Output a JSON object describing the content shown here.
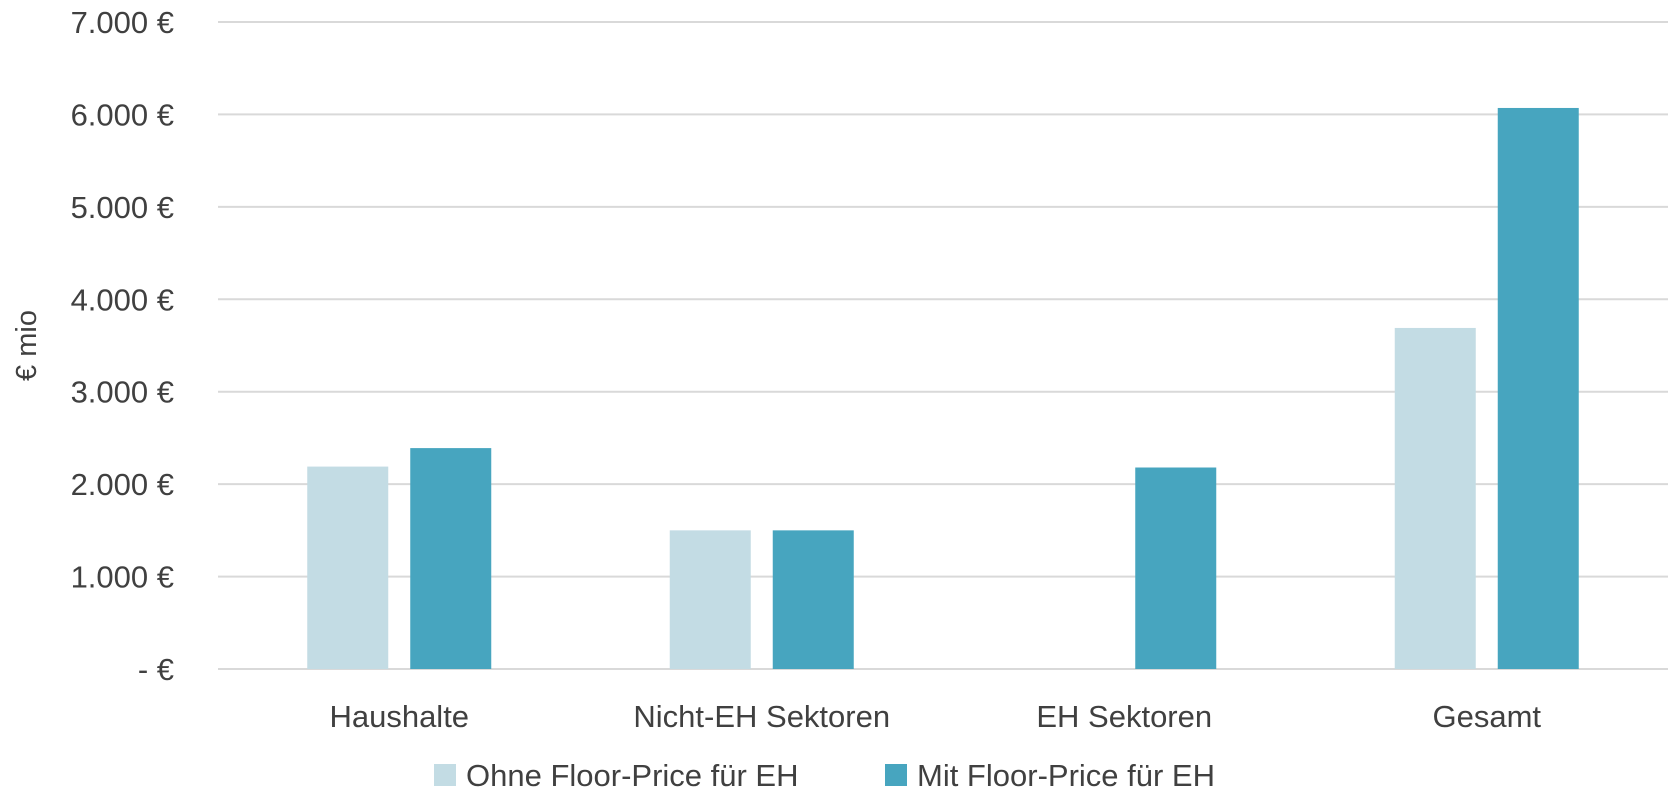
{
  "chart_data": {
    "type": "bar",
    "title": "",
    "xlabel": "",
    "ylabel": "€ mio",
    "ylim": [
      0,
      7000
    ],
    "grid": true,
    "legend_position": "bottom",
    "categories": [
      "Haushalte",
      "Nicht-EH Sektoren",
      "EH Sektoren",
      "Gesamt"
    ],
    "y_ticks": [
      {
        "value": 0,
        "label": "-   €"
      },
      {
        "value": 1000,
        "label": "1.000 €"
      },
      {
        "value": 2000,
        "label": "2.000 €"
      },
      {
        "value": 3000,
        "label": "3.000 €"
      },
      {
        "value": 4000,
        "label": "4.000 €"
      },
      {
        "value": 5000,
        "label": "5.000 €"
      },
      {
        "value": 6000,
        "label": "6.000 €"
      },
      {
        "value": 7000,
        "label": "7.000 €"
      }
    ],
    "series": [
      {
        "name": "Ohne Floor-Price für EH",
        "color": "#c3dce4",
        "values": [
          2190,
          1500,
          0,
          3690
        ]
      },
      {
        "name": "Mit Floor-Price für EH",
        "color": "#47a5bf",
        "values": [
          2390,
          1500,
          2180,
          6070
        ]
      }
    ]
  }
}
